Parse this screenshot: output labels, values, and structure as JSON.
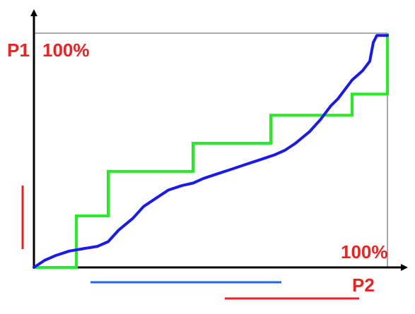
{
  "chart_data": {
    "type": "line",
    "xlim": [
      0,
      1
    ],
    "ylim": [
      0,
      1
    ],
    "x_axis_label": "P2",
    "y_axis_label": "P1",
    "x_max_label": "100%",
    "y_max_label": "100%",
    "grid": false,
    "legend": "none",
    "series": [
      {
        "style": "step",
        "color": "#22ee22",
        "x": [
          0,
          0.12,
          0.12,
          0.21,
          0.21,
          0.45,
          0.45,
          0.67,
          0.67,
          0.9,
          0.9,
          1.0,
          1.0
        ],
        "y": [
          0,
          0,
          0.22,
          0.22,
          0.41,
          0.41,
          0.53,
          0.53,
          0.65,
          0.65,
          0.74,
          0.74,
          1.0
        ]
      },
      {
        "style": "smooth",
        "color": "#1a1aee",
        "x": [
          0,
          0.03,
          0.06,
          0.1,
          0.14,
          0.18,
          0.21,
          0.24,
          0.28,
          0.31,
          0.34,
          0.38,
          0.42,
          0.45,
          0.48,
          0.52,
          0.56,
          0.6,
          0.64,
          0.68,
          0.71,
          0.74,
          0.78,
          0.81,
          0.84,
          0.86,
          0.88,
          0.9,
          0.93,
          0.95,
          0.96,
          0.97,
          1.0
        ],
        "y": [
          0,
          0.03,
          0.05,
          0.07,
          0.08,
          0.09,
          0.11,
          0.16,
          0.21,
          0.26,
          0.29,
          0.33,
          0.35,
          0.36,
          0.38,
          0.4,
          0.42,
          0.44,
          0.46,
          0.48,
          0.5,
          0.53,
          0.58,
          0.63,
          0.69,
          0.72,
          0.76,
          0.8,
          0.84,
          0.88,
          0.96,
          0.99,
          0.99
        ]
      }
    ]
  },
  "colors": {
    "axis": "#000000",
    "label": "#ee2222",
    "frame": "#555555",
    "marker_red": "#ee2222",
    "marker_blue": "#2266ee"
  }
}
